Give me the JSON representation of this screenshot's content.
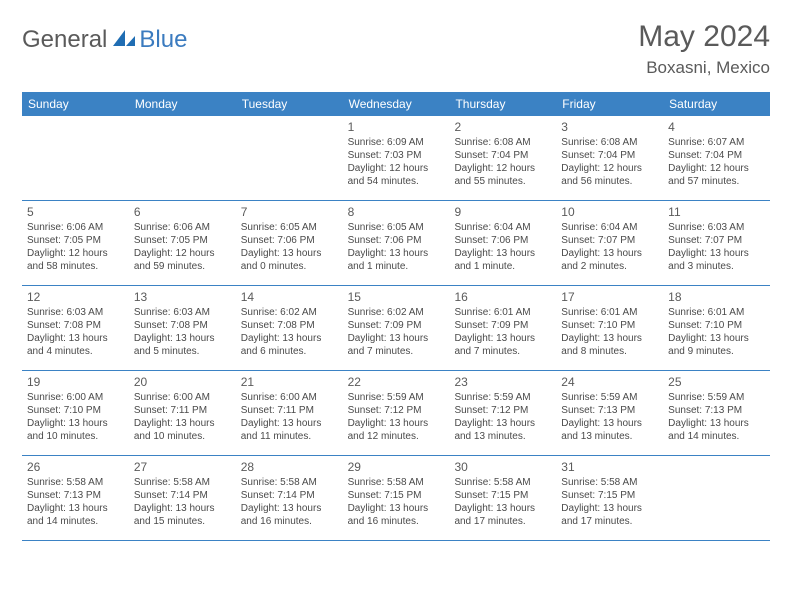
{
  "logo": {
    "general": "General",
    "blue": "Blue"
  },
  "title": "May 2024",
  "location": "Boxasni, Mexico",
  "colors": {
    "header_bg": "#3b82c4",
    "header_text": "#ffffff",
    "text": "#4a4a4a",
    "title_text": "#5a5a5a",
    "divider": "#3b82c4",
    "logo_gray": "#5a5a5a",
    "logo_blue": "#3b7bbf"
  },
  "daynames": [
    "Sunday",
    "Monday",
    "Tuesday",
    "Wednesday",
    "Thursday",
    "Friday",
    "Saturday"
  ],
  "weeks": [
    [
      {
        "num": "",
        "sunrise": "",
        "sunset": "",
        "daylight": ""
      },
      {
        "num": "",
        "sunrise": "",
        "sunset": "",
        "daylight": ""
      },
      {
        "num": "",
        "sunrise": "",
        "sunset": "",
        "daylight": ""
      },
      {
        "num": "1",
        "sunrise": "Sunrise: 6:09 AM",
        "sunset": "Sunset: 7:03 PM",
        "daylight": "Daylight: 12 hours and 54 minutes."
      },
      {
        "num": "2",
        "sunrise": "Sunrise: 6:08 AM",
        "sunset": "Sunset: 7:04 PM",
        "daylight": "Daylight: 12 hours and 55 minutes."
      },
      {
        "num": "3",
        "sunrise": "Sunrise: 6:08 AM",
        "sunset": "Sunset: 7:04 PM",
        "daylight": "Daylight: 12 hours and 56 minutes."
      },
      {
        "num": "4",
        "sunrise": "Sunrise: 6:07 AM",
        "sunset": "Sunset: 7:04 PM",
        "daylight": "Daylight: 12 hours and 57 minutes."
      }
    ],
    [
      {
        "num": "5",
        "sunrise": "Sunrise: 6:06 AM",
        "sunset": "Sunset: 7:05 PM",
        "daylight": "Daylight: 12 hours and 58 minutes."
      },
      {
        "num": "6",
        "sunrise": "Sunrise: 6:06 AM",
        "sunset": "Sunset: 7:05 PM",
        "daylight": "Daylight: 12 hours and 59 minutes."
      },
      {
        "num": "7",
        "sunrise": "Sunrise: 6:05 AM",
        "sunset": "Sunset: 7:06 PM",
        "daylight": "Daylight: 13 hours and 0 minutes."
      },
      {
        "num": "8",
        "sunrise": "Sunrise: 6:05 AM",
        "sunset": "Sunset: 7:06 PM",
        "daylight": "Daylight: 13 hours and 1 minute."
      },
      {
        "num": "9",
        "sunrise": "Sunrise: 6:04 AM",
        "sunset": "Sunset: 7:06 PM",
        "daylight": "Daylight: 13 hours and 1 minute."
      },
      {
        "num": "10",
        "sunrise": "Sunrise: 6:04 AM",
        "sunset": "Sunset: 7:07 PM",
        "daylight": "Daylight: 13 hours and 2 minutes."
      },
      {
        "num": "11",
        "sunrise": "Sunrise: 6:03 AM",
        "sunset": "Sunset: 7:07 PM",
        "daylight": "Daylight: 13 hours and 3 minutes."
      }
    ],
    [
      {
        "num": "12",
        "sunrise": "Sunrise: 6:03 AM",
        "sunset": "Sunset: 7:08 PM",
        "daylight": "Daylight: 13 hours and 4 minutes."
      },
      {
        "num": "13",
        "sunrise": "Sunrise: 6:03 AM",
        "sunset": "Sunset: 7:08 PM",
        "daylight": "Daylight: 13 hours and 5 minutes."
      },
      {
        "num": "14",
        "sunrise": "Sunrise: 6:02 AM",
        "sunset": "Sunset: 7:08 PM",
        "daylight": "Daylight: 13 hours and 6 minutes."
      },
      {
        "num": "15",
        "sunrise": "Sunrise: 6:02 AM",
        "sunset": "Sunset: 7:09 PM",
        "daylight": "Daylight: 13 hours and 7 minutes."
      },
      {
        "num": "16",
        "sunrise": "Sunrise: 6:01 AM",
        "sunset": "Sunset: 7:09 PM",
        "daylight": "Daylight: 13 hours and 7 minutes."
      },
      {
        "num": "17",
        "sunrise": "Sunrise: 6:01 AM",
        "sunset": "Sunset: 7:10 PM",
        "daylight": "Daylight: 13 hours and 8 minutes."
      },
      {
        "num": "18",
        "sunrise": "Sunrise: 6:01 AM",
        "sunset": "Sunset: 7:10 PM",
        "daylight": "Daylight: 13 hours and 9 minutes."
      }
    ],
    [
      {
        "num": "19",
        "sunrise": "Sunrise: 6:00 AM",
        "sunset": "Sunset: 7:10 PM",
        "daylight": "Daylight: 13 hours and 10 minutes."
      },
      {
        "num": "20",
        "sunrise": "Sunrise: 6:00 AM",
        "sunset": "Sunset: 7:11 PM",
        "daylight": "Daylight: 13 hours and 10 minutes."
      },
      {
        "num": "21",
        "sunrise": "Sunrise: 6:00 AM",
        "sunset": "Sunset: 7:11 PM",
        "daylight": "Daylight: 13 hours and 11 minutes."
      },
      {
        "num": "22",
        "sunrise": "Sunrise: 5:59 AM",
        "sunset": "Sunset: 7:12 PM",
        "daylight": "Daylight: 13 hours and 12 minutes."
      },
      {
        "num": "23",
        "sunrise": "Sunrise: 5:59 AM",
        "sunset": "Sunset: 7:12 PM",
        "daylight": "Daylight: 13 hours and 13 minutes."
      },
      {
        "num": "24",
        "sunrise": "Sunrise: 5:59 AM",
        "sunset": "Sunset: 7:13 PM",
        "daylight": "Daylight: 13 hours and 13 minutes."
      },
      {
        "num": "25",
        "sunrise": "Sunrise: 5:59 AM",
        "sunset": "Sunset: 7:13 PM",
        "daylight": "Daylight: 13 hours and 14 minutes."
      }
    ],
    [
      {
        "num": "26",
        "sunrise": "Sunrise: 5:58 AM",
        "sunset": "Sunset: 7:13 PM",
        "daylight": "Daylight: 13 hours and 14 minutes."
      },
      {
        "num": "27",
        "sunrise": "Sunrise: 5:58 AM",
        "sunset": "Sunset: 7:14 PM",
        "daylight": "Daylight: 13 hours and 15 minutes."
      },
      {
        "num": "28",
        "sunrise": "Sunrise: 5:58 AM",
        "sunset": "Sunset: 7:14 PM",
        "daylight": "Daylight: 13 hours and 16 minutes."
      },
      {
        "num": "29",
        "sunrise": "Sunrise: 5:58 AM",
        "sunset": "Sunset: 7:15 PM",
        "daylight": "Daylight: 13 hours and 16 minutes."
      },
      {
        "num": "30",
        "sunrise": "Sunrise: 5:58 AM",
        "sunset": "Sunset: 7:15 PM",
        "daylight": "Daylight: 13 hours and 17 minutes."
      },
      {
        "num": "31",
        "sunrise": "Sunrise: 5:58 AM",
        "sunset": "Sunset: 7:15 PM",
        "daylight": "Daylight: 13 hours and 17 minutes."
      },
      {
        "num": "",
        "sunrise": "",
        "sunset": "",
        "daylight": ""
      }
    ]
  ]
}
